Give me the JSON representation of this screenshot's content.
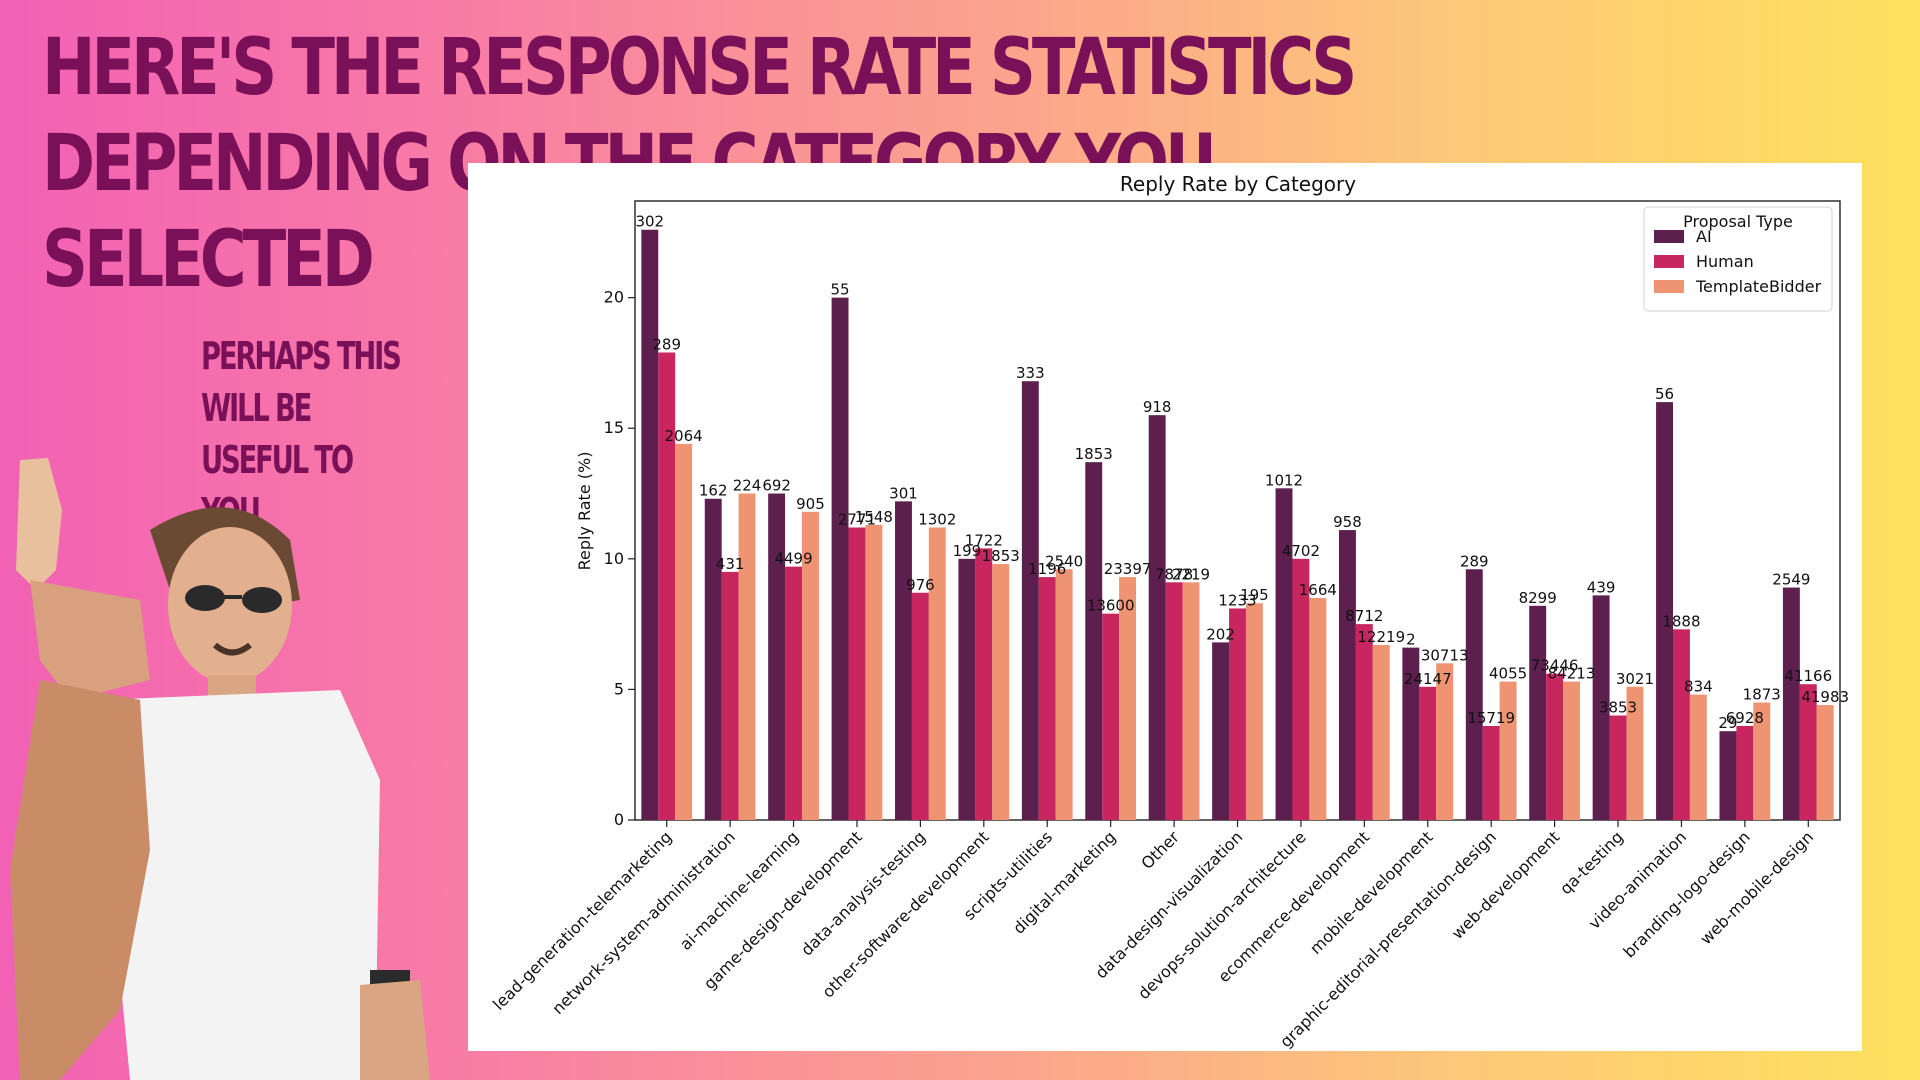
{
  "slide": {
    "headline": "Here's the response rate statistics depending on the category you selected",
    "subhead": "Perhaps this will be useful to you"
  },
  "colors": {
    "headline": "#7a1058",
    "AI": "#5c1f4e",
    "Human": "#c8265f",
    "TemplateBidder": "#ef9473"
  },
  "photo": {
    "icon": "person-salt-sprinkle-photo"
  },
  "chart_data": {
    "type": "bar",
    "title": "Reply Rate by Category",
    "xlabel": "",
    "ylabel": "Reply Rate (%)",
    "ylim": [
      0,
      23.7
    ],
    "yticks": [
      0,
      5,
      10,
      15,
      20
    ],
    "grid": false,
    "legend": {
      "title": "Proposal Type",
      "placement": "top-right"
    },
    "categories": [
      "lead-generation-telemarketing",
      "network-system-administration",
      "ai-machine-learning",
      "game-design-development",
      "data-analysis-testing",
      "other-software-development",
      "scripts-utilities",
      "digital-marketing",
      "Other",
      "data-design-visualization",
      "devops-solution-architecture",
      "ecommerce-development",
      "mobile-development",
      "graphic-editorial-presentation-design",
      "web-development",
      "qa-testing",
      "video-animation",
      "branding-logo-design",
      "web-mobile-design"
    ],
    "series": [
      {
        "name": "AI",
        "values": [
          22.6,
          12.3,
          12.5,
          20.0,
          12.2,
          10.0,
          16.8,
          13.7,
          15.5,
          6.8,
          12.7,
          11.1,
          6.6,
          9.6,
          8.2,
          8.6,
          16.0,
          3.4,
          8.9
        ],
        "labels": [
          "302",
          "162",
          "692",
          "55",
          "301",
          "199",
          "333",
          "1853",
          "918",
          "202",
          "1012",
          "958",
          "2",
          "289",
          "8299",
          "439",
          "56",
          "29",
          "2549"
        ]
      },
      {
        "name": "Human",
        "values": [
          17.9,
          9.5,
          9.7,
          11.2,
          8.7,
          10.4,
          9.3,
          7.9,
          9.1,
          8.1,
          10.0,
          7.5,
          5.1,
          3.6,
          5.6,
          4.0,
          7.3,
          3.6,
          5.2
        ],
        "labels": [
          "289",
          "431",
          "4499",
          "2771",
          "976",
          "1722",
          "1196",
          "13600",
          "7878",
          "1233",
          "4702",
          "8712",
          "24147",
          "15719",
          "73446",
          "3853",
          "1888",
          "6928",
          "41166"
        ]
      },
      {
        "name": "TemplateBidder",
        "values": [
          14.4,
          12.5,
          11.8,
          11.3,
          11.2,
          9.8,
          9.6,
          9.3,
          9.1,
          8.3,
          8.5,
          6.7,
          6.0,
          5.3,
          5.3,
          5.1,
          4.8,
          4.5,
          4.4
        ],
        "labels": [
          "2064",
          "224",
          "905",
          "1548",
          "1302",
          "1853",
          "2540",
          "23397",
          "2219",
          "195",
          "1664",
          "12219",
          "30713",
          "4055",
          "84213",
          "3021",
          "834",
          "1873",
          "41983"
        ]
      }
    ]
  }
}
